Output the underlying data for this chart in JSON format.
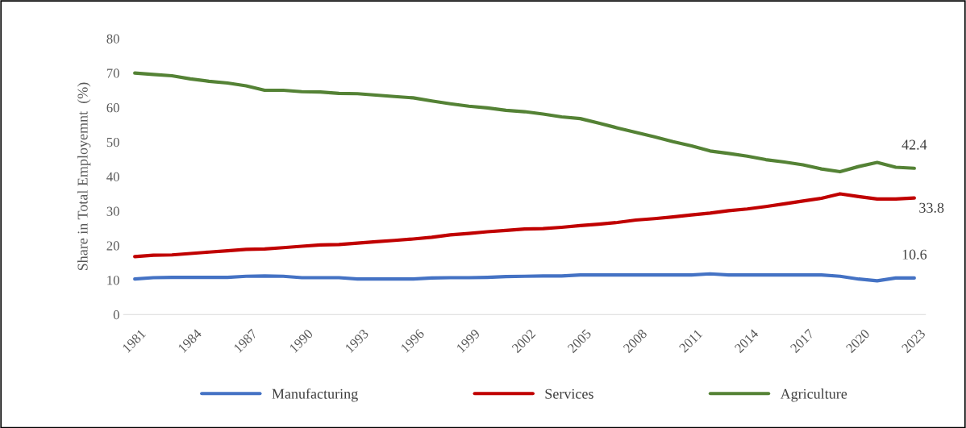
{
  "chart_data": {
    "type": "line",
    "ylabel": "Share in Total Employemnt  (%)",
    "categories": [
      "1981",
      null,
      null,
      "1984",
      null,
      null,
      "1987",
      null,
      null,
      "1990",
      null,
      null,
      "1993",
      null,
      null,
      "1996",
      null,
      null,
      "1999",
      null,
      null,
      "2002",
      null,
      null,
      "2005",
      null,
      null,
      "2008",
      null,
      null,
      "2011",
      null,
      null,
      "2014",
      null,
      null,
      "2017",
      null,
      null,
      "2020",
      null,
      null,
      "2023"
    ],
    "series": [
      {
        "name": "Manufacturing",
        "color": "#4472c4",
        "values": [
          10.3,
          10.7,
          10.8,
          10.8,
          10.8,
          10.8,
          11.1,
          11.2,
          11.1,
          10.7,
          10.7,
          10.7,
          10.3,
          10.3,
          10.3,
          10.3,
          10.6,
          10.7,
          10.7,
          10.8,
          11.0,
          11.1,
          11.2,
          11.2,
          11.5,
          11.5,
          11.5,
          11.5,
          11.5,
          11.5,
          11.5,
          11.8,
          11.5,
          11.5,
          11.5,
          11.5,
          11.5,
          11.5,
          11.1,
          10.3,
          9.8,
          10.6,
          10.6
        ]
      },
      {
        "name": "Services",
        "color": "#c00000",
        "values": [
          16.8,
          17.2,
          17.3,
          17.7,
          18.1,
          18.5,
          18.9,
          19.0,
          19.4,
          19.8,
          20.2,
          20.3,
          20.7,
          21.1,
          21.5,
          21.9,
          22.4,
          23.1,
          23.5,
          24.0,
          24.4,
          24.8,
          24.9,
          25.3,
          25.8,
          26.2,
          26.7,
          27.4,
          27.8,
          28.3,
          28.9,
          29.4,
          30.1,
          30.6,
          31.3,
          32.1,
          32.9,
          33.7,
          35.0,
          34.2,
          33.5,
          33.5,
          33.8
        ]
      },
      {
        "name": "Agriculture",
        "color": "#548235",
        "values": [
          70.0,
          69.6,
          69.2,
          68.3,
          67.6,
          67.1,
          66.3,
          65.0,
          65.0,
          64.6,
          64.5,
          64.1,
          64.0,
          63.6,
          63.2,
          62.8,
          61.9,
          61.1,
          60.4,
          59.9,
          59.2,
          58.8,
          58.1,
          57.3,
          56.8,
          55.5,
          54.1,
          52.8,
          51.5,
          50.1,
          48.9,
          47.4,
          46.7,
          45.9,
          44.9,
          44.2,
          43.4,
          42.2,
          41.4,
          42.9,
          44.1,
          42.7,
          42.4
        ]
      }
    ],
    "annotations": [
      {
        "text": "42.4",
        "x": "2023",
        "y": 42.4
      },
      {
        "text": "33.8",
        "x": "2023",
        "y": 33.8
      },
      {
        "text": "10.6",
        "x": "2023",
        "y": 10.6
      }
    ],
    "ylim": [
      0,
      80
    ],
    "yticks": [
      0,
      10,
      20,
      30,
      40,
      50,
      60,
      70,
      80
    ],
    "grid": false,
    "legend": "bottom",
    "marker": "none",
    "line_style": "solid"
  }
}
